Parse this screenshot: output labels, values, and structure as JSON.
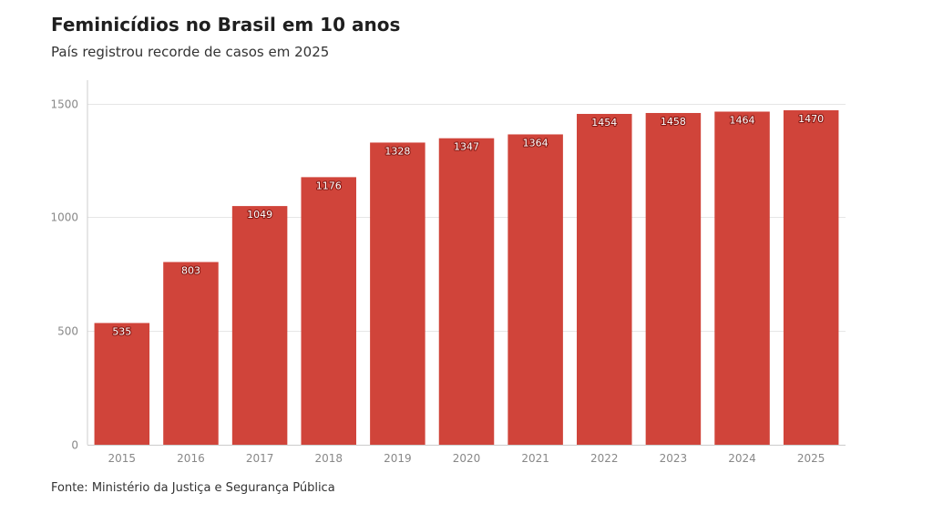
{
  "header": {
    "title": "Feminicídios no Brasil em 10 anos",
    "subtitle": "País registrou recorde de casos em 2025"
  },
  "footer": {
    "source": "Fonte: Ministério da Justiça e Segurança Pública"
  },
  "colors": {
    "bar": "#d0443a",
    "grid": "#e6e6e6",
    "axis": "#cccccc"
  },
  "chart_data": {
    "type": "bar",
    "title": "Feminicídios no Brasil em 10 anos",
    "subtitle": "País registrou recorde de casos em 2025",
    "xlabel": "",
    "ylabel": "",
    "categories": [
      "2015",
      "2016",
      "2017",
      "2018",
      "2019",
      "2020",
      "2021",
      "2022",
      "2023",
      "2024",
      "2025"
    ],
    "values": [
      535,
      803,
      1049,
      1176,
      1328,
      1347,
      1364,
      1454,
      1458,
      1464,
      1470
    ],
    "ylim": [
      0,
      1500
    ],
    "yticks": [
      0,
      500,
      1000,
      1500
    ],
    "grid": true,
    "legend": "none",
    "data_labels": true
  }
}
